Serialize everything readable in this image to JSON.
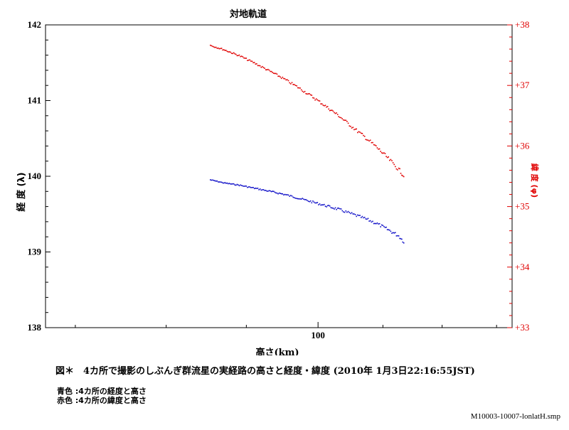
{
  "chart_data": {
    "type": "scatter",
    "title": "対地軌道",
    "xlabel": "高さ(km)",
    "x_scale": "log",
    "xlim": [
      67,
      133
    ],
    "x_ticks": [
      100
    ],
    "y_left": {
      "label": "経 度 (λ)",
      "ylim": [
        138,
        142
      ],
      "ticks": [
        "138",
        "139",
        "140",
        "141",
        "142"
      ]
    },
    "y_right": {
      "label": "緯 度 (φ)",
      "ylim": [
        33,
        38
      ],
      "ticks": [
        "+33",
        "+34",
        "+35",
        "+36",
        "+37",
        "+38"
      ]
    },
    "series": [
      {
        "name": "経度",
        "axis": "left",
        "color": "#1010c8",
        "points": [
          [
            85.3,
            139.96
          ],
          [
            87,
            139.92
          ],
          [
            89,
            139.89
          ],
          [
            91,
            139.85
          ],
          [
            93,
            139.81
          ],
          [
            95,
            139.77
          ],
          [
            97,
            139.72
          ],
          [
            99,
            139.67
          ],
          [
            101,
            139.62
          ],
          [
            103,
            139.57
          ],
          [
            105,
            139.51
          ],
          [
            107,
            139.45
          ],
          [
            109,
            139.38
          ],
          [
            111,
            139.29
          ],
          [
            112.5,
            139.22
          ],
          [
            113.5,
            139.13
          ]
        ]
      },
      {
        "name": "緯度",
        "axis": "right",
        "color": "#e00000",
        "points": [
          [
            85.3,
            37.67
          ],
          [
            87,
            37.6
          ],
          [
            89,
            37.5
          ],
          [
            91,
            37.38
          ],
          [
            93,
            37.25
          ],
          [
            95,
            37.12
          ],
          [
            97,
            36.98
          ],
          [
            99,
            36.83
          ],
          [
            101,
            36.67
          ],
          [
            103,
            36.51
          ],
          [
            105,
            36.33
          ],
          [
            107,
            36.16
          ],
          [
            109,
            35.98
          ],
          [
            111,
            35.78
          ],
          [
            112.5,
            35.62
          ],
          [
            113.5,
            35.5
          ]
        ]
      }
    ]
  },
  "caption": "図＊　4カ所で撮影のしぶんぎ群流星の実経路の高さと経度・緯度 (2010年 1月3日22:16:55JST)",
  "legend": [
    "青色 :4カ所の経度と高さ",
    "赤色 :4カ所の緯度と高さ"
  ],
  "filename": "M10003-10007-lonlatH.smp"
}
